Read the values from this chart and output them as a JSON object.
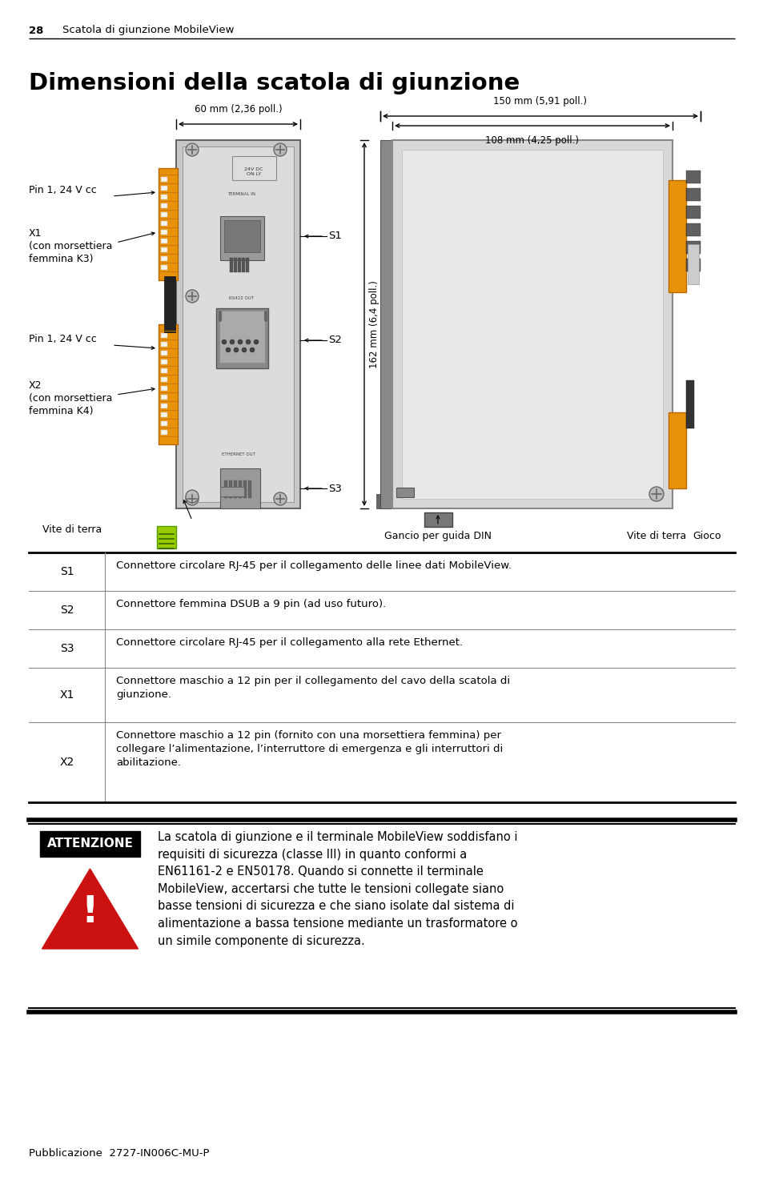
{
  "page_number": "28",
  "header_text": "Scatola di giunzione MobileView",
  "title": "Dimensioni della scatola di giunzione",
  "footer_text": "Pubblicazione  2727-IN006C-MU-P",
  "table_rows": [
    {
      "label": "S1",
      "description": "Connettore circolare RJ-45 per il collegamento delle linee dati MobileView."
    },
    {
      "label": "S2",
      "description": "Connettore femmina DSUB a 9 pin (ad uso futuro)."
    },
    {
      "label": "S3",
      "description": "Connettore circolare RJ-45 per il collegamento alla rete Ethernet."
    },
    {
      "label": "X1",
      "description": "Connettore maschio a 12 pin per il collegamento del cavo della scatola di\ngiunzione."
    },
    {
      "label": "X2",
      "description": "Connettore maschio a 12 pin (fornito con una morsettiera femmina) per\ncollegare l’alimentazione, l’interruttore di emergenza e gli interruttori di\nabilitazione."
    }
  ],
  "attention_label": "ATTENZIONE",
  "attention_text": "La scatola di giunzione e il terminale MobileView soddisfano i\nrequisiti di sicurezza (classe III) in quanto conformi a\nEN61161-2 e EN50178. Quando si connette il terminale\nMobileView, accertarsi che tutte le tensioni collegate siano\nbasse tensioni di sicurezza e che siano isolate dal sistema di\nalimentazione a bassa tensione mediante un trasformatore o\nun simile componente di sicurezza.",
  "dim_60mm": "60 mm (2,36 poll.)",
  "dim_150mm": "150 mm (5,91 poll.)",
  "dim_108mm": "108 mm (4,25 poll.)",
  "dim_162mm": "162 mm (6,4 poll.)",
  "label_pin1_24v_1": "Pin 1, 24 V cc",
  "label_x1": "X1\n(con morsettiera\nfemmina K3)",
  "label_pin1_24v_2": "Pin 1, 24 V cc",
  "label_x2": "X2\n(con morsettiera\nfemmina K4)",
  "label_vite_terra_left": "Vite di terra",
  "label_gancio": "Gancio per guida DIN",
  "label_vite_terra_right": "Vite di terra",
  "label_gioco": "Gioco",
  "label_s1": "S1",
  "label_s2": "S2",
  "label_s3": "S3",
  "bg_color": "#ffffff",
  "orange_color": "#e8920a",
  "orange_dark": "#b86800",
  "gray_body": "#c8c8c8",
  "gray_inner": "#dcdcdc",
  "gray_dark": "#888888",
  "gray_med": "#aaaaaa",
  "black": "#000000",
  "white": "#ffffff",
  "red_warn": "#cc1111",
  "green_ind": "#88cc00",
  "cable_dark": "#333333"
}
